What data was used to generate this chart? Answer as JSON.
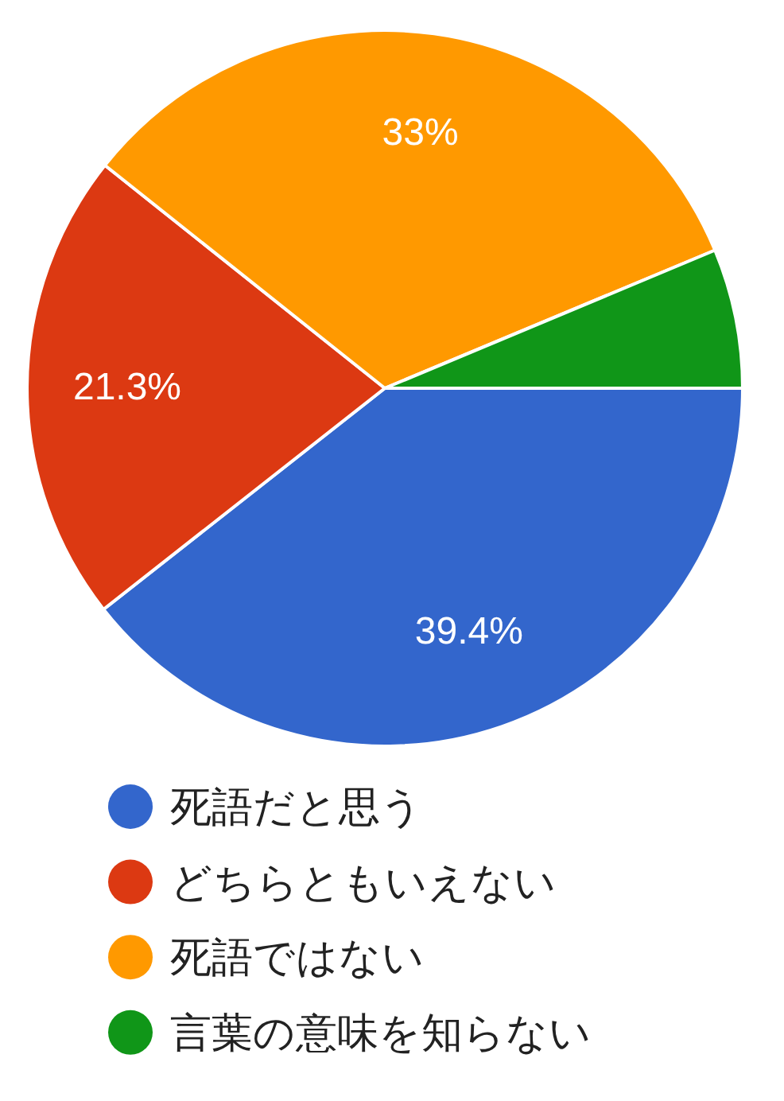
{
  "chart_data": {
    "type": "pie",
    "categories": [
      "死語だと思う",
      "どちらともいえない",
      "死語ではない",
      "言葉の意味を知らない"
    ],
    "values": [
      39.4,
      21.3,
      33,
      6.3
    ],
    "colors": [
      "#3366cc",
      "#dc3912",
      "#ff9900",
      "#109618"
    ],
    "value_labels": [
      "39.4%",
      "21.3%",
      "33%",
      null
    ],
    "legend": "bottom"
  }
}
